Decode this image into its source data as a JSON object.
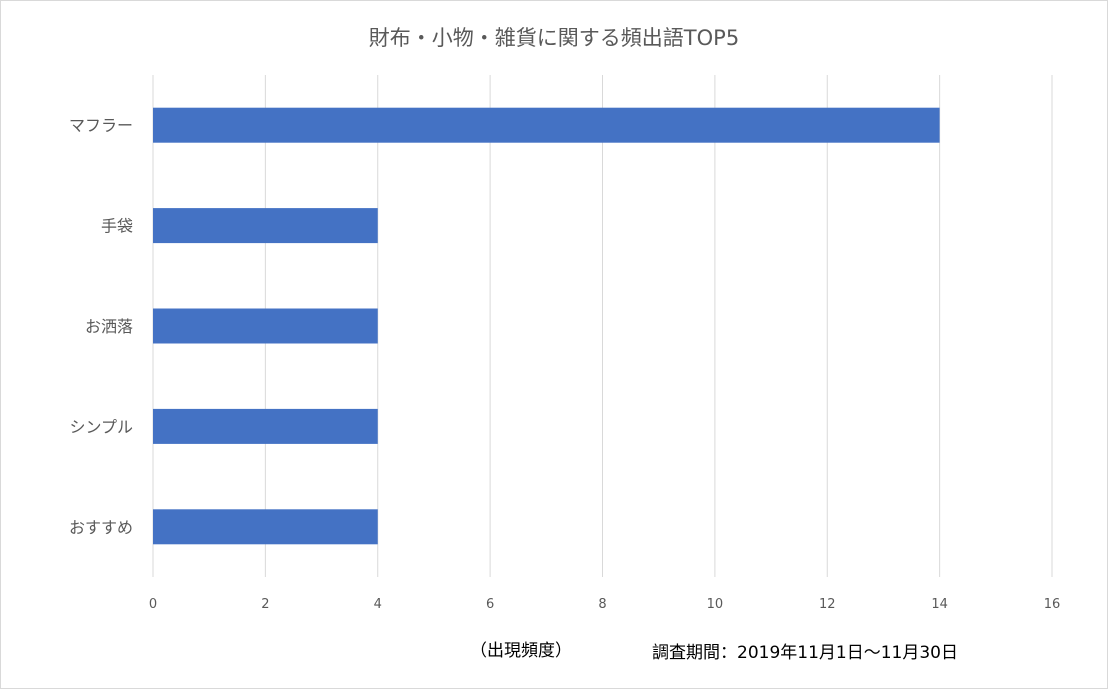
{
  "chart_data": {
    "type": "bar",
    "orientation": "horizontal",
    "title": "財布・小物・雑貨に関する頻出語TOP5",
    "categories": [
      "マフラー",
      "手袋",
      "お洒落",
      "シンプル",
      "おすすめ"
    ],
    "values": [
      14,
      4,
      4,
      4,
      4
    ],
    "xlim": [
      0,
      16
    ],
    "x_ticks": [
      0,
      2,
      4,
      6,
      8,
      10,
      12,
      14,
      16
    ],
    "xlabel": "（出現頻度）",
    "grid": "vertical",
    "bar_color": "#4472c4",
    "grid_color": "#d9d9d9"
  },
  "annotations": {
    "period": "調査期間：2019年11月1日〜11月30日"
  }
}
